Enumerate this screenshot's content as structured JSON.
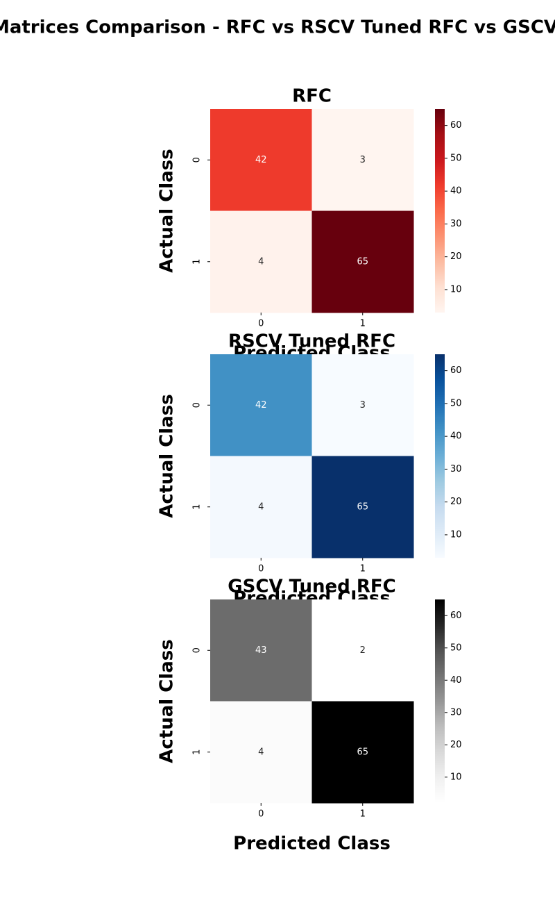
{
  "title": "Confusion Matrices Comparison - RFC vs RSCV Tuned RFC vs GSCV Tuned RFC",
  "chart_data": [
    {
      "type": "heatmap",
      "title": "RFC",
      "xlabel": "Predicted Class",
      "ylabel": "Actual Class",
      "x": [
        "0",
        "1"
      ],
      "y": [
        "0",
        "1"
      ],
      "values": [
        [
          42,
          3
        ],
        [
          4,
          65
        ]
      ],
      "zlim": [
        3,
        65
      ],
      "zticks": [
        10,
        20,
        30,
        40,
        50,
        60
      ],
      "colors": [
        "#fff5f0",
        "#fee0d2",
        "#fcbba1",
        "#fc9272",
        "#fb6a4a",
        "#ef3b2c",
        "#cb181d",
        "#a50f15",
        "#67000d"
      ]
    },
    {
      "type": "heatmap",
      "title": "RSCV Tuned RFC",
      "xlabel": "Predicted Class",
      "ylabel": "Actual Class",
      "x": [
        "0",
        "1"
      ],
      "y": [
        "0",
        "1"
      ],
      "values": [
        [
          42,
          3
        ],
        [
          4,
          65
        ]
      ],
      "zlim": [
        3,
        65
      ],
      "zticks": [
        10,
        20,
        30,
        40,
        50,
        60
      ],
      "colors": [
        "#f7fbff",
        "#deebf7",
        "#c6dbef",
        "#9ecae1",
        "#6baed6",
        "#4292c6",
        "#2171b5",
        "#08519c",
        "#08306b"
      ]
    },
    {
      "type": "heatmap",
      "title": "GSCV Tuned RFC",
      "xlabel": "Predicted Class",
      "ylabel": "Actual Class",
      "x": [
        "0",
        "1"
      ],
      "y": [
        "0",
        "1"
      ],
      "values": [
        [
          43,
          2
        ],
        [
          4,
          65
        ]
      ],
      "zlim": [
        2,
        65
      ],
      "zticks": [
        10,
        20,
        30,
        40,
        50,
        60
      ],
      "colors": [
        "#ffffff",
        "#f0f0f0",
        "#d9d9d9",
        "#bdbdbd",
        "#969696",
        "#737373",
        "#525252",
        "#252525",
        "#000000"
      ]
    }
  ]
}
